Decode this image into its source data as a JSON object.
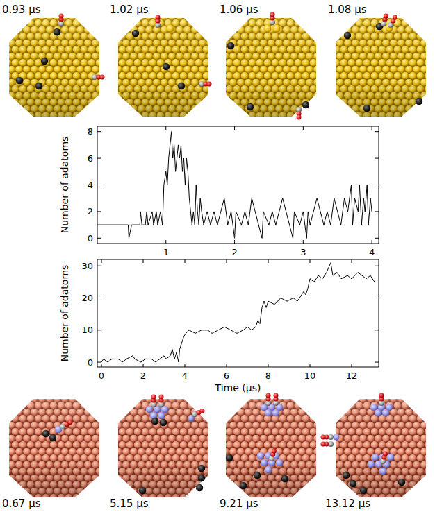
{
  "gold_snapshots": [
    "0.93 μs",
    "1.02 μs",
    "1.06 μs",
    "1.08 μs"
  ],
  "copper_snapshots": [
    "0.67 μs",
    "5.15 μs",
    "9.21 μs",
    "13.12 μs"
  ],
  "chart_data": [
    {
      "type": "line",
      "y_label": "Number of adatoms",
      "color": "#000000",
      "xlim": [
        0,
        4.1
      ],
      "xticks": [
        1,
        2,
        3,
        4
      ],
      "ylim": [
        -0.4,
        8.4
      ],
      "yticks": [
        0,
        2,
        4,
        6,
        8
      ],
      "x": [
        0,
        0.45,
        0.46,
        0.5,
        0.62,
        0.63,
        0.65,
        0.7,
        0.72,
        0.74,
        0.8,
        0.82,
        0.86,
        0.88,
        0.92,
        0.95,
        0.97,
        1.0,
        1.02,
        1.04,
        1.06,
        1.08,
        1.1,
        1.12,
        1.14,
        1.16,
        1.18,
        1.2,
        1.22,
        1.24,
        1.26,
        1.28,
        1.3,
        1.32,
        1.34,
        1.36,
        1.38,
        1.4,
        1.42,
        1.44,
        1.46,
        1.48,
        1.5,
        1.52,
        1.55,
        1.6,
        1.65,
        1.7,
        1.75,
        1.8,
        1.85,
        1.9,
        1.95,
        2.0,
        2.02,
        2.1,
        2.15,
        2.2,
        2.25,
        2.3,
        2.35,
        2.4,
        2.42,
        2.5,
        2.55,
        2.6,
        2.65,
        2.7,
        2.75,
        2.8,
        2.85,
        2.87,
        2.95,
        3.0,
        3.05,
        3.07,
        3.1,
        3.15,
        3.2,
        3.25,
        3.3,
        3.35,
        3.4,
        3.45,
        3.5,
        3.55,
        3.6,
        3.65,
        3.7,
        3.72,
        3.75,
        3.8,
        3.82,
        3.85,
        3.88,
        3.9,
        3.93,
        3.95,
        3.98,
        4.0
      ],
      "values": [
        1,
        1,
        0,
        1,
        1,
        2,
        1,
        1,
        2,
        1,
        2,
        1,
        2,
        1,
        2,
        1,
        4,
        5,
        4,
        6,
        7,
        8,
        6,
        7,
        5,
        6,
        7,
        6,
        7,
        5,
        6,
        4,
        6,
        5,
        3,
        2,
        1,
        2,
        1,
        4,
        2,
        1,
        3,
        2,
        1,
        2,
        1,
        2,
        1,
        2,
        3,
        1,
        2,
        0,
        2,
        1,
        2,
        1,
        3,
        2,
        1,
        0,
        2,
        1,
        2,
        1,
        2,
        3,
        2,
        1,
        0,
        2,
        1,
        2,
        0,
        2,
        1,
        2,
        3,
        2,
        1,
        2,
        1,
        3,
        2,
        1,
        3,
        2,
        4,
        1,
        3,
        2,
        4,
        1,
        3,
        2,
        4,
        1,
        3,
        2
      ]
    },
    {
      "type": "line",
      "x_label": "Time (μs)",
      "y_label": "Number of adatoms",
      "color": "#000000",
      "xlim": [
        -0.2,
        13.3
      ],
      "xticks": [
        0,
        2,
        4,
        6,
        8,
        10,
        12
      ],
      "ylim": [
        -1.5,
        32
      ],
      "yticks": [
        0,
        10,
        20,
        30
      ],
      "x": [
        0,
        0.1,
        0.3,
        0.5,
        0.8,
        1.0,
        1.2,
        1.5,
        1.6,
        1.9,
        2.1,
        2.4,
        2.6,
        2.8,
        3.0,
        3.1,
        3.3,
        3.4,
        3.5,
        3.6,
        3.7,
        3.75,
        3.85,
        3.95,
        4.05,
        4.2,
        4.5,
        4.8,
        5.1,
        5.3,
        5.6,
        5.9,
        6.2,
        6.5,
        6.8,
        7.0,
        7.2,
        7.4,
        7.5,
        7.6,
        7.7,
        7.8,
        7.9,
        8.0,
        8.3,
        8.6,
        8.9,
        9.2,
        9.4,
        9.6,
        9.7,
        9.8,
        9.9,
        10.0,
        10.2,
        10.4,
        10.6,
        10.8,
        11.0,
        11.1,
        11.3,
        11.5,
        11.8,
        12.0,
        12.3,
        12.5,
        12.7,
        12.9,
        13.1
      ],
      "values": [
        0,
        1,
        0,
        1,
        1,
        0,
        1,
        2,
        1,
        0,
        1,
        1,
        0,
        1,
        2,
        1,
        2,
        4,
        1,
        3,
        0,
        4,
        6,
        8,
        9,
        10,
        9,
        10,
        10,
        9,
        10,
        11,
        10,
        9,
        10,
        11,
        10,
        11,
        13,
        12,
        17,
        19,
        17,
        19,
        18,
        20,
        19,
        20,
        19,
        21,
        22,
        21,
        23,
        26,
        25,
        27,
        26,
        28,
        31,
        27,
        28,
        26,
        27,
        26,
        28,
        27,
        26,
        27,
        25
      ]
    }
  ]
}
